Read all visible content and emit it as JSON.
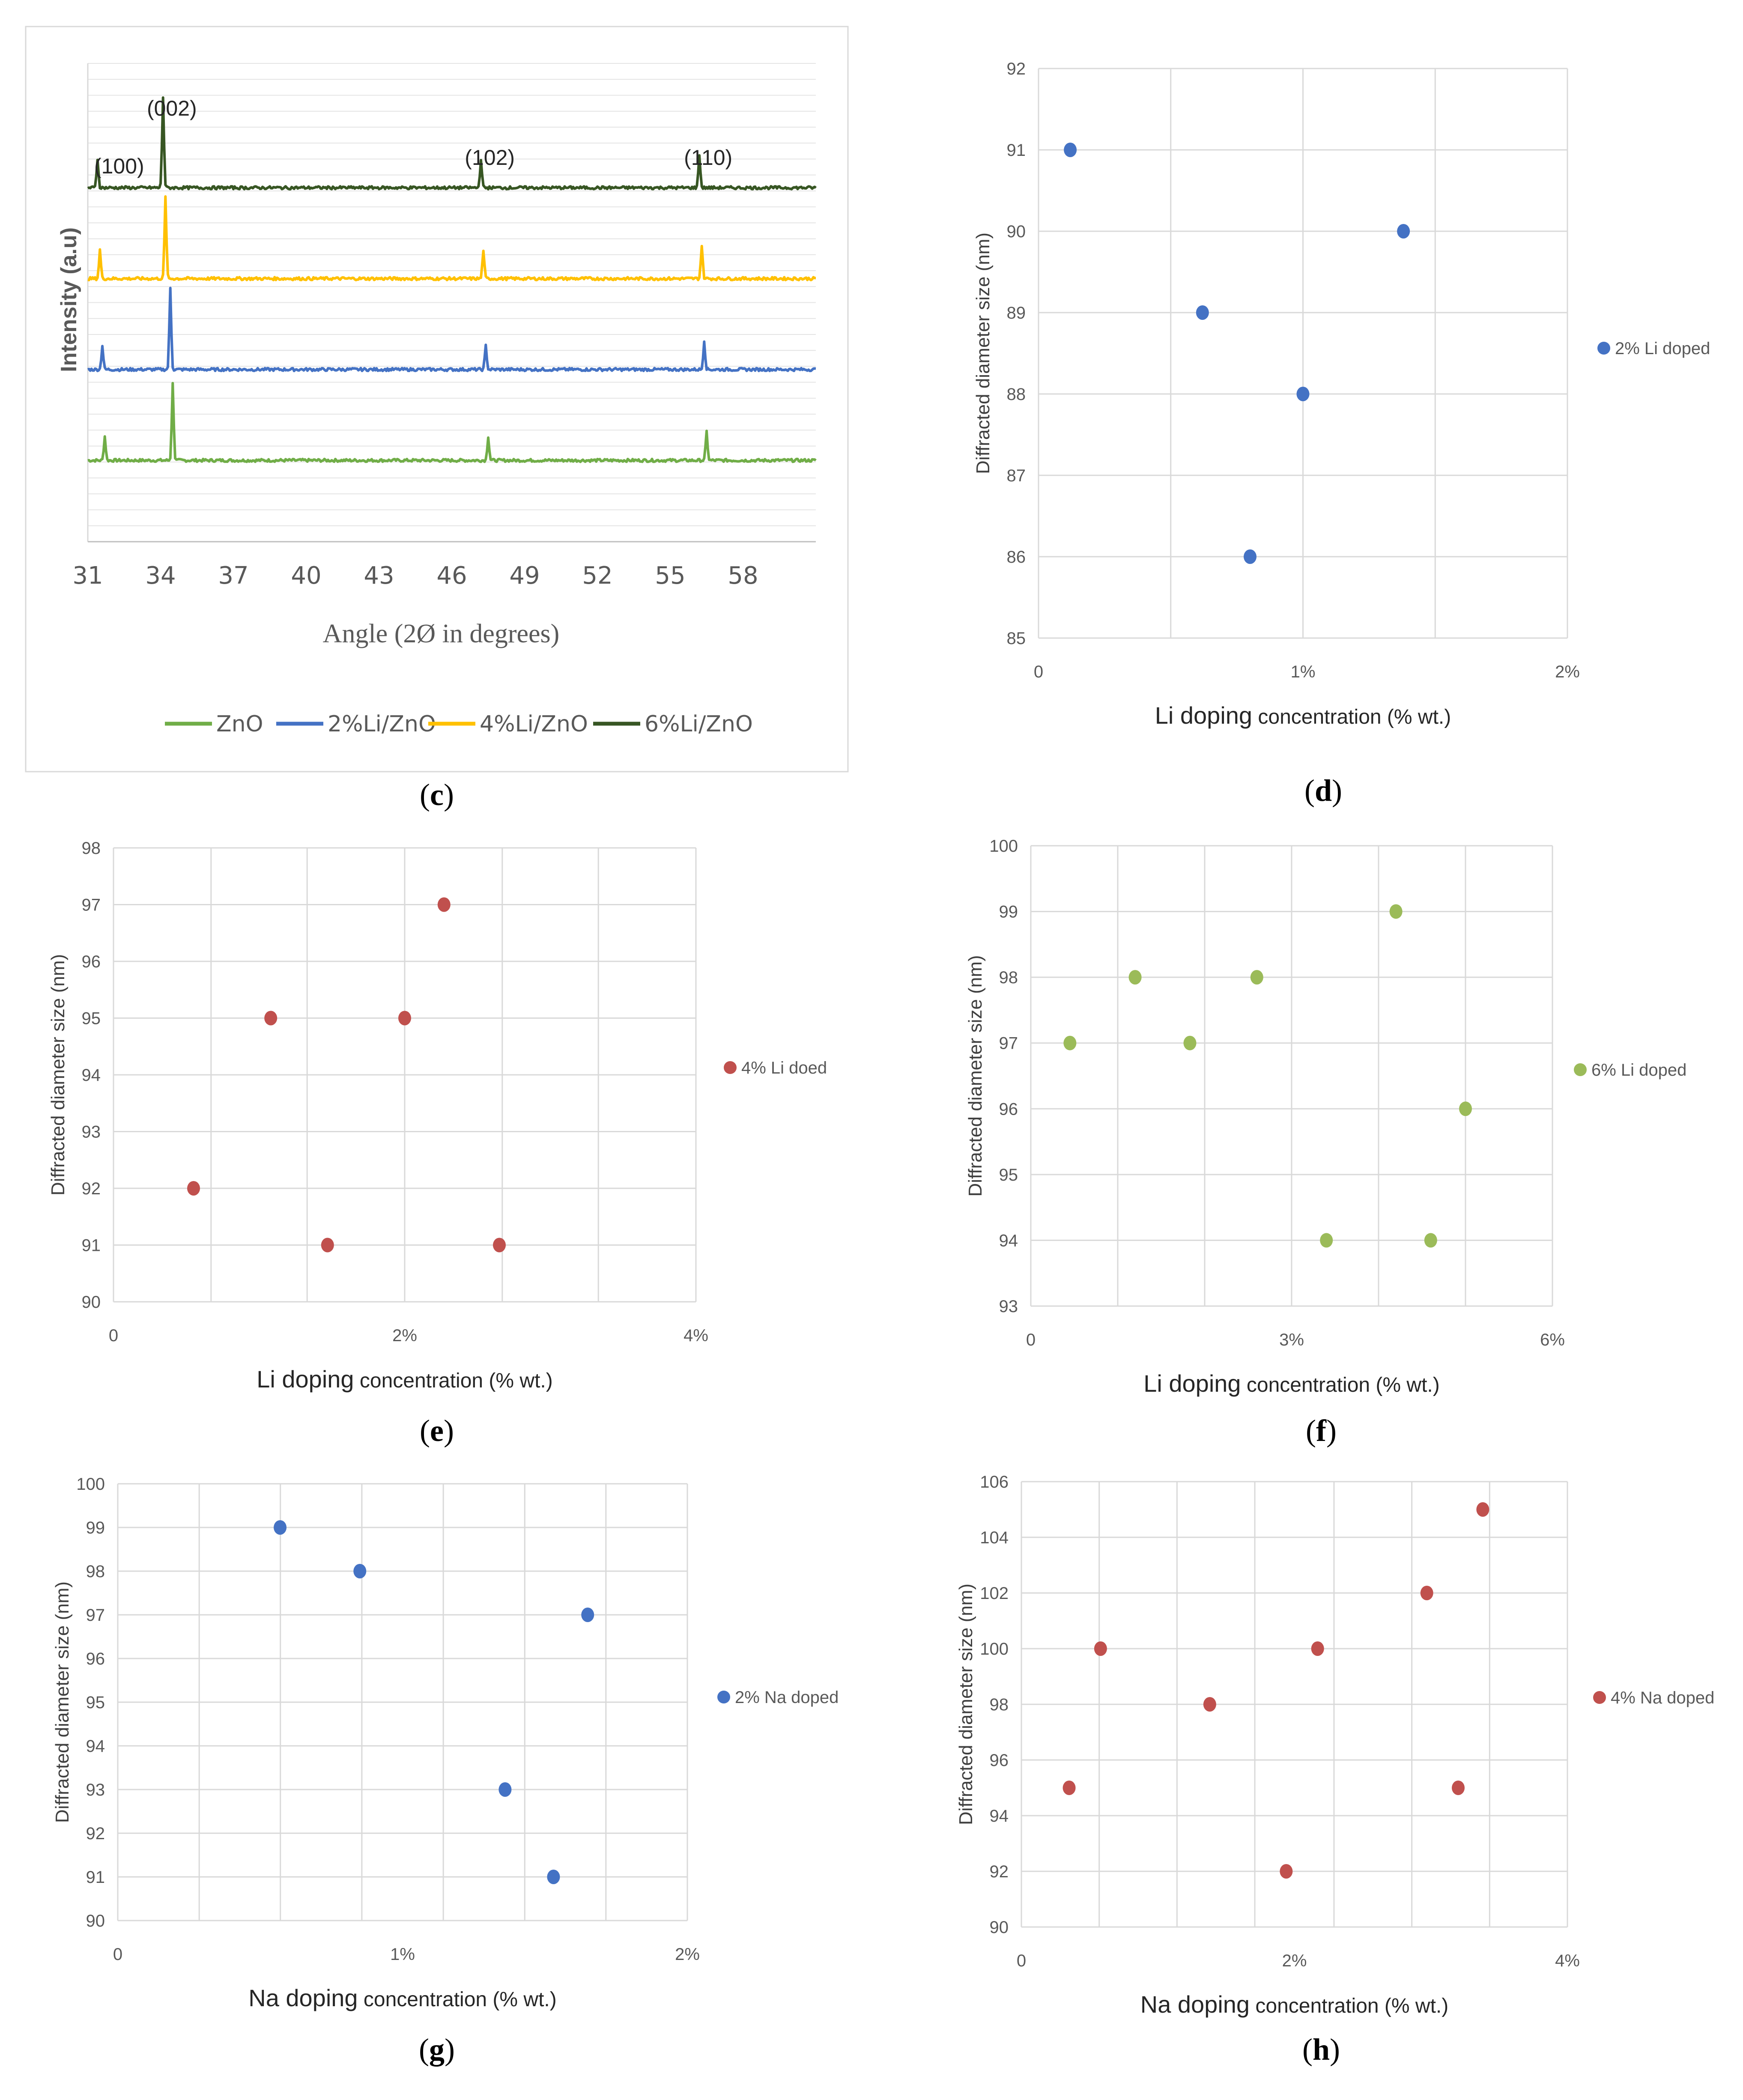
{
  "figure": {
    "panels": [
      {
        "id": "c",
        "caption_letter": "c"
      },
      {
        "id": "d",
        "caption_letter": "d"
      },
      {
        "id": "e",
        "caption_letter": "e"
      },
      {
        "id": "f",
        "caption_letter": "f"
      },
      {
        "id": "g",
        "caption_letter": "g"
      },
      {
        "id": "h",
        "caption_letter": "h"
      }
    ]
  },
  "chart_data": [
    {
      "id": "c",
      "type": "line",
      "title": "",
      "xlabel": "Angle (2Ø in degrees)",
      "ylabel": "Intensity (a.u)",
      "xlim": [
        31,
        61
      ],
      "xticks": [
        "31",
        "34",
        "37",
        "40",
        "43",
        "46",
        "49",
        "52",
        "55",
        "58"
      ],
      "grid": true,
      "legend": "bottom",
      "peak_labels": [
        "(100)",
        "(002)",
        "(102)",
        "(110)"
      ],
      "peak_positions": [
        31.5,
        34.2,
        47.3,
        56.3
      ],
      "series": [
        {
          "name": "ZnO",
          "color": "#70ad47",
          "baseline_level": 0.17,
          "peaks": [
            [
              31.7,
              0.05
            ],
            [
              34.5,
              0.16
            ],
            [
              47.5,
              0.05
            ],
            [
              56.5,
              0.06
            ]
          ]
        },
        {
          "name": "2%Li/ZnO",
          "color": "#4472c4",
          "baseline_level": 0.36,
          "peaks": [
            [
              31.6,
              0.05
            ],
            [
              34.4,
              0.17
            ],
            [
              47.4,
              0.05
            ],
            [
              56.4,
              0.06
            ]
          ]
        },
        {
          "name": "4%Li/ZnO",
          "color": "#ffc000",
          "baseline_level": 0.55,
          "peaks": [
            [
              31.5,
              0.06
            ],
            [
              34.2,
              0.17
            ],
            [
              47.3,
              0.06
            ],
            [
              56.3,
              0.07
            ]
          ]
        },
        {
          "name": "6%Li/ZnO",
          "color": "#375623",
          "baseline_level": 0.74,
          "peaks": [
            [
              31.4,
              0.06
            ],
            [
              34.1,
              0.19
            ],
            [
              47.2,
              0.06
            ],
            [
              56.2,
              0.07
            ]
          ]
        }
      ]
    },
    {
      "id": "d",
      "type": "scatter",
      "xlabel_main": "Li doping",
      "xlabel_rest": " concentration (% wt.)",
      "ylabel": "Diffracted diameter size (nm)",
      "xlim": [
        0,
        2
      ],
      "ylim": [
        85,
        92
      ],
      "xticks": [
        {
          "v": 0,
          "t": "0"
        },
        {
          "v": 1,
          "t": "1%"
        },
        {
          "v": 2,
          "t": "2%"
        }
      ],
      "yticks": [
        85,
        86,
        87,
        88,
        89,
        90,
        91,
        92
      ],
      "xgrid": [
        0,
        0.5,
        1,
        1.5,
        2
      ],
      "legend": "right",
      "series": [
        {
          "name": "2% Li doped",
          "color": "#4472c4",
          "points": [
            [
              0.12,
              91
            ],
            [
              0.62,
              89
            ],
            [
              0.8,
              86
            ],
            [
              1.0,
              88
            ],
            [
              1.38,
              90
            ]
          ]
        }
      ]
    },
    {
      "id": "e",
      "type": "scatter",
      "xlabel_main": "Li doping",
      "xlabel_rest": " concentration (% wt.)",
      "ylabel": "Diffracted diameter size (nm)",
      "xlim": [
        0,
        4
      ],
      "ylim": [
        90,
        98
      ],
      "xticks": [
        {
          "v": 0,
          "t": "0"
        },
        {
          "v": 2,
          "t": "2%"
        },
        {
          "v": 4,
          "t": "4%"
        }
      ],
      "yticks": [
        90,
        91,
        92,
        93,
        94,
        95,
        96,
        97,
        98
      ],
      "xgrid": [
        0,
        0.67,
        1.33,
        2,
        2.67,
        3.33,
        4
      ],
      "legend": "right",
      "series": [
        {
          "name": "4% Li doed",
          "color": "#c0504d",
          "points": [
            [
              0.55,
              92
            ],
            [
              1.08,
              95
            ],
            [
              1.47,
              91
            ],
            [
              2.0,
              95
            ],
            [
              2.27,
              97
            ],
            [
              2.65,
              91
            ]
          ]
        }
      ]
    },
    {
      "id": "f",
      "type": "scatter",
      "xlabel_main": "Li doping",
      "xlabel_rest": " concentration (% wt.)",
      "ylabel": "Diffracted diameter size (nm)",
      "xlim": [
        0,
        6
      ],
      "ylim": [
        93,
        100
      ],
      "xticks": [
        {
          "v": 0,
          "t": "0"
        },
        {
          "v": 3,
          "t": "3%"
        },
        {
          "v": 6,
          "t": "6%"
        }
      ],
      "yticks": [
        93,
        94,
        95,
        96,
        97,
        98,
        99,
        100
      ],
      "xgrid": [
        0,
        1,
        2,
        3,
        4,
        5,
        6
      ],
      "legend": "right",
      "series": [
        {
          "name": "6% Li doped",
          "color": "#9bbb59",
          "points": [
            [
              0.45,
              97
            ],
            [
              1.2,
              98
            ],
            [
              1.83,
              97
            ],
            [
              2.6,
              98
            ],
            [
              3.4,
              94
            ],
            [
              4.2,
              99
            ],
            [
              4.6,
              94
            ],
            [
              5.0,
              96
            ]
          ]
        }
      ]
    },
    {
      "id": "g",
      "type": "scatter",
      "xlabel_main": "Na doping",
      "xlabel_rest": " concentration (% wt.)",
      "ylabel": "Diffracted diameter size (nm)",
      "xlim": [
        0,
        2
      ],
      "ylim": [
        90,
        100
      ],
      "xticks": [
        {
          "v": 0,
          "t": "0"
        },
        {
          "v": 1,
          "t": "1%"
        },
        {
          "v": 2,
          "t": "2%"
        }
      ],
      "yticks": [
        90,
        91,
        92,
        93,
        94,
        95,
        96,
        97,
        98,
        99,
        100
      ],
      "xgrid": [
        0,
        0.286,
        0.571,
        0.857,
        1.143,
        1.429,
        1.714,
        2
      ],
      "legend": "right",
      "series": [
        {
          "name": "2% Na doped",
          "color": "#4472c4",
          "points": [
            [
              0.57,
              99
            ],
            [
              0.85,
              98
            ],
            [
              1.36,
              93
            ],
            [
              1.53,
              91
            ],
            [
              1.65,
              97
            ]
          ]
        }
      ]
    },
    {
      "id": "h",
      "type": "scatter",
      "xlabel_main": "Na doping",
      "xlabel_rest": " concentration (% wt.)",
      "ylabel": "Diffracted diameter size (nm)",
      "xlim": [
        0,
        4
      ],
      "ylim": [
        90,
        106
      ],
      "xticks": [
        {
          "v": 0,
          "t": "0"
        },
        {
          "v": 2,
          "t": "2%"
        },
        {
          "v": 4,
          "t": "4%"
        }
      ],
      "yticks": [
        90,
        92,
        94,
        96,
        98,
        100,
        102,
        104,
        106
      ],
      "xgrid": [
        0,
        0.57,
        1.14,
        1.71,
        2.29,
        2.86,
        3.43,
        4
      ],
      "legend": "right",
      "series": [
        {
          "name": "4% Na doped",
          "color": "#c0504d",
          "points": [
            [
              0.35,
              95
            ],
            [
              0.58,
              100
            ],
            [
              1.38,
              98
            ],
            [
              1.94,
              92
            ],
            [
              2.17,
              100
            ],
            [
              2.97,
              102
            ],
            [
              3.2,
              95
            ],
            [
              3.38,
              105
            ]
          ]
        }
      ]
    }
  ]
}
